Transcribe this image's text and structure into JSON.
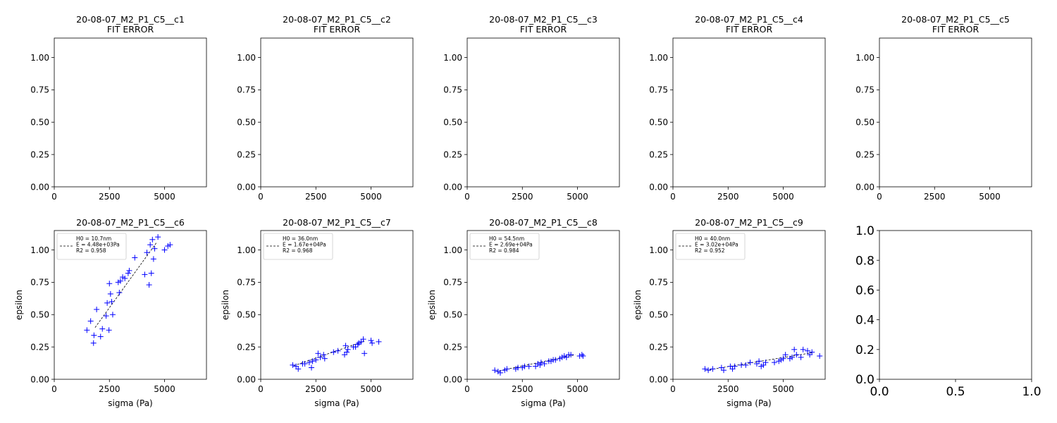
{
  "chart_data": [
    {
      "type": "scatter",
      "title": "20-08-07_M2_P1_C5__c1",
      "subtitle": "FIT ERROR",
      "xlabel": "",
      "ylabel": "",
      "xlim": [
        0,
        6900
      ],
      "ylim": [
        0,
        1.15
      ],
      "xticks": [
        "0",
        "2500",
        "5000"
      ],
      "yticks": [
        "0.00",
        "0.25",
        "0.50",
        "0.75",
        "1.00"
      ],
      "series": []
    },
    {
      "type": "scatter",
      "title": "20-08-07_M2_P1_C5__c2",
      "subtitle": "FIT ERROR",
      "xlabel": "",
      "ylabel": "",
      "xlim": [
        0,
        6900
      ],
      "ylim": [
        0,
        1.15
      ],
      "xticks": [
        "0",
        "2500",
        "5000"
      ],
      "yticks": [
        "0.00",
        "0.25",
        "0.50",
        "0.75",
        "1.00"
      ],
      "series": []
    },
    {
      "type": "scatter",
      "title": "20-08-07_M2_P1_C5__c3",
      "subtitle": "FIT ERROR",
      "xlabel": "",
      "ylabel": "",
      "xlim": [
        0,
        6900
      ],
      "ylim": [
        0,
        1.15
      ],
      "xticks": [
        "0",
        "2500",
        "5000"
      ],
      "yticks": [
        "0.00",
        "0.25",
        "0.50",
        "0.75",
        "1.00"
      ],
      "series": []
    },
    {
      "type": "scatter",
      "title": "20-08-07_M2_P1_C5__c4",
      "subtitle": "FIT ERROR",
      "xlabel": "",
      "ylabel": "",
      "xlim": [
        0,
        6900
      ],
      "ylim": [
        0,
        1.15
      ],
      "xticks": [
        "0",
        "2500",
        "5000"
      ],
      "yticks": [
        "0.00",
        "0.25",
        "0.50",
        "0.75",
        "1.00"
      ],
      "series": []
    },
    {
      "type": "scatter",
      "title": "20-08-07_M2_P1_C5__c5",
      "subtitle": "FIT ERROR",
      "xlabel": "",
      "ylabel": "",
      "xlim": [
        0,
        6900
      ],
      "ylim": [
        0,
        1.15
      ],
      "xticks": [
        "0",
        "2500",
        "5000"
      ],
      "yticks": [
        "0.00",
        "0.25",
        "0.50",
        "0.75",
        "1.00"
      ],
      "series": []
    },
    {
      "type": "scatter",
      "title": "20-08-07_M2_P1_C5__c6",
      "subtitle": "",
      "xlabel": "sigma (Pa)",
      "ylabel": "epsilon",
      "xlim": [
        0,
        6900
      ],
      "ylim": [
        0,
        1.15
      ],
      "xticks": [
        "0",
        "2500",
        "5000"
      ],
      "yticks": [
        "0.00",
        "0.25",
        "0.50",
        "0.75",
        "1.00"
      ],
      "legend": {
        "position": "top-left",
        "lines": [
          "H0 = 10.7nm",
          "E = 4.48e+03Pa",
          "R2 = 0.958"
        ]
      },
      "fit": {
        "x": [
          1850,
          4650
        ],
        "y": [
          0.4,
          1.06
        ]
      },
      "series": [
        {
          "marker": "+",
          "color": "#0000ff",
          "x": [
            1480,
            1650,
            1780,
            1800,
            1920,
            2100,
            2180,
            2350,
            2400,
            2480,
            2500,
            2550,
            2600,
            2650,
            2900,
            2950,
            3000,
            3100,
            3200,
            3350,
            3400,
            3650,
            4100,
            4200,
            4300,
            4350,
            4400,
            4450,
            4500,
            4550,
            4700,
            5000,
            5150,
            5250
          ],
          "y": [
            0.38,
            0.45,
            0.28,
            0.34,
            0.54,
            0.33,
            0.39,
            0.49,
            0.59,
            0.38,
            0.74,
            0.66,
            0.6,
            0.5,
            0.75,
            0.67,
            0.76,
            0.79,
            0.78,
            0.82,
            0.84,
            0.94,
            0.81,
            0.98,
            0.73,
            1.04,
            0.82,
            1.08,
            0.93,
            1.01,
            1.1,
            1.0,
            1.03,
            1.04
          ]
        }
      ]
    },
    {
      "type": "scatter",
      "title": "20-08-07_M2_P1_C5__c7",
      "subtitle": "",
      "xlabel": "sigma (Pa)",
      "ylabel": "epsilon",
      "xlim": [
        0,
        6900
      ],
      "ylim": [
        0,
        1.15
      ],
      "xticks": [
        "0",
        "2500",
        "5000"
      ],
      "yticks": [
        "0.00",
        "0.25",
        "0.50",
        "0.75",
        "1.00"
      ],
      "legend": {
        "position": "top-left",
        "lines": [
          "H0 = 36.0nm",
          "E = 1.67e+04Pa",
          "R2 = 0.968"
        ]
      },
      "fit": {
        "x": [
          1500,
          4700
        ],
        "y": [
          0.105,
          0.295
        ]
      },
      "series": [
        {
          "marker": "+",
          "color": "#0000ff",
          "x": [
            1450,
            1600,
            1700,
            1900,
            2000,
            2200,
            2300,
            2350,
            2500,
            2600,
            2700,
            2850,
            2900,
            3300,
            3500,
            3800,
            3850,
            3900,
            3950,
            4200,
            4300,
            4400,
            4450,
            4550,
            4650,
            4700,
            5000,
            5050,
            5350
          ],
          "y": [
            0.11,
            0.1,
            0.08,
            0.12,
            0.12,
            0.13,
            0.09,
            0.14,
            0.15,
            0.2,
            0.17,
            0.19,
            0.16,
            0.21,
            0.22,
            0.19,
            0.26,
            0.21,
            0.23,
            0.25,
            0.25,
            0.27,
            0.28,
            0.29,
            0.31,
            0.2,
            0.3,
            0.28,
            0.29
          ]
        }
      ]
    },
    {
      "type": "scatter",
      "title": "20-08-07_M2_P1_C5__c8",
      "subtitle": "",
      "xlabel": "sigma (Pa)",
      "ylabel": "epsilon",
      "xlim": [
        0,
        6900
      ],
      "ylim": [
        0,
        1.15
      ],
      "xticks": [
        "0",
        "2500",
        "5000"
      ],
      "yticks": [
        "0.00",
        "0.25",
        "0.50",
        "0.75",
        "1.00"
      ],
      "legend": {
        "position": "top-left",
        "lines": [
          "H0 = 54.5nm",
          "E = 2.69e+04Pa",
          "R2 = 0.984"
        ]
      },
      "fit": {
        "x": [
          1300,
          4900
        ],
        "y": [
          0.06,
          0.19
        ]
      },
      "series": [
        {
          "marker": "+",
          "color": "#0000ff",
          "x": [
            1250,
            1400,
            1500,
            1700,
            1800,
            2200,
            2300,
            2500,
            2600,
            2800,
            3100,
            3200,
            3300,
            3350,
            3500,
            3700,
            3800,
            3900,
            4000,
            4200,
            4300,
            4400,
            4500,
            4600,
            4700,
            5100,
            5200,
            5250
          ],
          "y": [
            0.07,
            0.06,
            0.05,
            0.07,
            0.08,
            0.08,
            0.09,
            0.09,
            0.1,
            0.1,
            0.1,
            0.12,
            0.11,
            0.13,
            0.12,
            0.14,
            0.14,
            0.15,
            0.15,
            0.16,
            0.17,
            0.18,
            0.17,
            0.19,
            0.19,
            0.18,
            0.19,
            0.18
          ]
        }
      ]
    },
    {
      "type": "scatter",
      "title": "20-08-07_M2_P1_C5__c9",
      "subtitle": "",
      "xlabel": "sigma (Pa)",
      "ylabel": "epsilon",
      "xlim": [
        0,
        6900
      ],
      "ylim": [
        0,
        1.15
      ],
      "xticks": [
        "0",
        "2500",
        "5000"
      ],
      "yticks": [
        "0.00",
        "0.25",
        "0.50",
        "0.75",
        "1.00"
      ],
      "legend": {
        "position": "top-left",
        "lines": [
          "H0 = 40.0nm",
          "E = 3.02e+04Pa",
          "R2 = 0.952"
        ]
      },
      "fit": {
        "x": [
          1500,
          6300
        ],
        "y": [
          0.07,
          0.205
        ]
      },
      "series": [
        {
          "marker": "+",
          "color": "#0000ff",
          "x": [
            1450,
            1600,
            1800,
            2200,
            2300,
            2600,
            2700,
            2800,
            3100,
            3300,
            3500,
            3800,
            3900,
            4000,
            4100,
            4200,
            4600,
            4800,
            4900,
            5000,
            5100,
            5300,
            5400,
            5500,
            5600,
            5800,
            5900,
            6100,
            6200,
            6300,
            6650
          ],
          "y": [
            0.08,
            0.07,
            0.08,
            0.09,
            0.07,
            0.1,
            0.08,
            0.1,
            0.11,
            0.11,
            0.13,
            0.12,
            0.14,
            0.1,
            0.11,
            0.13,
            0.13,
            0.14,
            0.15,
            0.16,
            0.19,
            0.16,
            0.17,
            0.23,
            0.19,
            0.17,
            0.23,
            0.22,
            0.19,
            0.21,
            0.18
          ]
        }
      ]
    },
    {
      "type": "scatter",
      "title": "",
      "subtitle": "",
      "xlabel": "",
      "ylabel": "",
      "xlim": [
        0,
        1
      ],
      "ylim": [
        0,
        1
      ],
      "xticks": [
        "0.0",
        "0.5",
        "1.0"
      ],
      "yticks": [
        "0.0",
        "0.2",
        "0.4",
        "0.6",
        "0.8",
        "1.0"
      ],
      "series": []
    }
  ]
}
